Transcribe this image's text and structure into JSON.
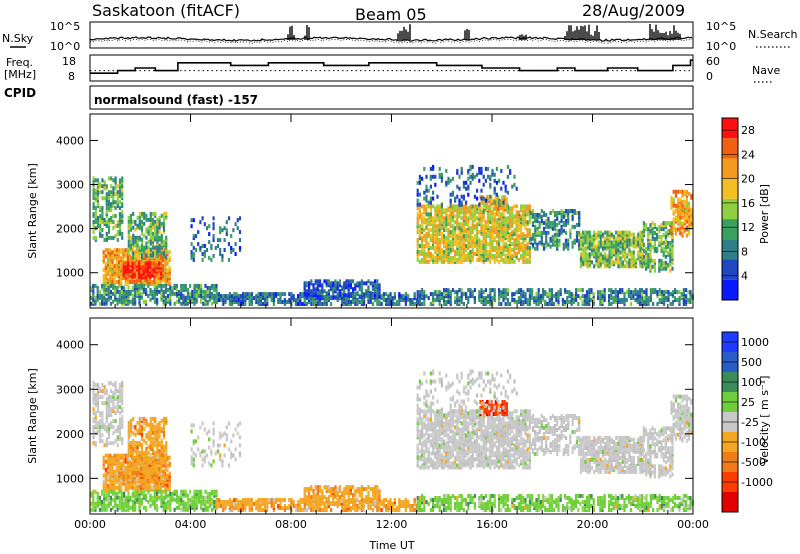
{
  "header": {
    "title_left": "Saskatoon (fitACF)",
    "title_center": "Beam 05",
    "title_right": "28/Aug/2009"
  },
  "side_labels": {
    "nsky": "N.Sky",
    "freq_line1": "Freq.",
    "freq_line2": "[MHz]",
    "cpid": "CPID",
    "nsearch": "N.Search",
    "nave": "Nave"
  },
  "cpid_text": "normalsound (fast) -157",
  "chart_data": [
    {
      "type": "line",
      "panel": "noise",
      "left_ticks": [
        "10^5",
        "10^0"
      ],
      "right_ticks": [
        "10^5",
        "10^0"
      ]
    },
    {
      "type": "line",
      "panel": "frequency",
      "left_ticks": [
        "18",
        "8"
      ],
      "right_ticks": [
        "60",
        "0"
      ],
      "freq_steps": [
        [
          0,
          11
        ],
        [
          1.1,
          12
        ],
        [
          1.8,
          13
        ],
        [
          2.6,
          12
        ],
        [
          3.5,
          15
        ],
        [
          5.6,
          14
        ],
        [
          7.1,
          15
        ],
        [
          9.3,
          14
        ],
        [
          11.1,
          15
        ],
        [
          13.8,
          14
        ],
        [
          15.6,
          13
        ],
        [
          17.1,
          12
        ],
        [
          17.9,
          12
        ],
        [
          18.6,
          13
        ],
        [
          19.3,
          12
        ],
        [
          20.6,
          13
        ],
        [
          21.8,
          12
        ],
        [
          23.2,
          14
        ],
        [
          23.9,
          16
        ],
        [
          24,
          16
        ]
      ],
      "nave_level": 12
    },
    {
      "type": "heatmap",
      "panel": "power",
      "xlabel": "",
      "ylabel": "Slant Range [km]",
      "x_ticks": [
        "00:00",
        "04:00",
        "08:00",
        "12:00",
        "16:00",
        "20:00",
        "00:00"
      ],
      "y_ticks": [
        1000,
        2000,
        3000,
        4000
      ],
      "ylim": [
        200,
        4600
      ],
      "xlim": [
        0,
        24
      ],
      "colorbar_label": "Power [dB]",
      "colorbar_ticks": [
        4,
        8,
        12,
        16,
        20,
        24,
        28
      ],
      "colorbar_range": [
        0,
        30
      ]
    },
    {
      "type": "heatmap",
      "panel": "velocity",
      "xlabel": "Time UT",
      "ylabel": "Slant Range [km]",
      "x_ticks": [
        "00:00",
        "04:00",
        "08:00",
        "12:00",
        "16:00",
        "20:00",
        "00:00"
      ],
      "y_ticks": [
        1000,
        2000,
        3000,
        4000
      ],
      "ylim": [
        200,
        4600
      ],
      "xlim": [
        0,
        24
      ],
      "colorbar_label": "Velocity [m s^-1]",
      "colorbar_label_text": "Velocity",
      "colorbar_unit_text": "[ m s⁻¹]",
      "colorbar_ticks": [
        "1000",
        "500",
        "100",
        "25",
        "-25",
        "-100",
        "-500",
        "-1000"
      ],
      "colorbar_colors": [
        "#1e3cff",
        "#2a5cc8",
        "#3a8c5a",
        "#6fcf3a",
        "#c8c8c8",
        "#f5a623",
        "#f07d1a",
        "#ff3c00",
        "#e00000"
      ]
    }
  ],
  "echo_regions": [
    {
      "t0": 0.1,
      "t1": 1.3,
      "r0": 1700,
      "r1": 3100,
      "p": 12,
      "v": "gray",
      "d": 0.45
    },
    {
      "t0": 0.5,
      "t1": 3.2,
      "r0": 700,
      "r1": 1500,
      "p": 22,
      "v": "orange",
      "d": 0.75
    },
    {
      "t0": 1.3,
      "t1": 2.8,
      "r0": 850,
      "r1": 1200,
      "p": 28,
      "v": "orange",
      "d": 0.9
    },
    {
      "t0": 1.5,
      "t1": 3.0,
      "r0": 1300,
      "r1": 2300,
      "p": 12,
      "v": "orange",
      "d": 0.5
    },
    {
      "t0": 0.0,
      "t1": 5.0,
      "r0": 250,
      "r1": 700,
      "p": 9,
      "v": "green",
      "d": 0.55
    },
    {
      "t0": 4.0,
      "t1": 6.0,
      "r0": 1200,
      "r1": 2200,
      "p": 6,
      "v": "gray",
      "d": 0.12
    },
    {
      "t0": 5.0,
      "t1": 13.0,
      "r0": 200,
      "r1": 500,
      "p": 7,
      "v": "orange",
      "d": 0.6
    },
    {
      "t0": 8.5,
      "t1": 11.5,
      "r0": 400,
      "r1": 800,
      "p": 5,
      "v": "orange",
      "d": 0.55
    },
    {
      "t0": 13.0,
      "t1": 17.5,
      "r0": 1200,
      "r1": 2500,
      "p": 18,
      "v": "gray",
      "d": 0.65
    },
    {
      "t0": 15.5,
      "t1": 16.6,
      "r0": 2400,
      "r1": 2700,
      "p": 20,
      "v": "red",
      "d": 0.6
    },
    {
      "t0": 17.5,
      "t1": 19.5,
      "r0": 1500,
      "r1": 2400,
      "p": 9,
      "v": "gray",
      "d": 0.35
    },
    {
      "t0": 19.5,
      "t1": 22.0,
      "r0": 1100,
      "r1": 1900,
      "p": 14,
      "v": "gray",
      "d": 0.7
    },
    {
      "t0": 22.0,
      "t1": 23.2,
      "r0": 1000,
      "r1": 2100,
      "p": 12,
      "v": "gray",
      "d": 0.45
    },
    {
      "t0": 23.1,
      "t1": 23.9,
      "r0": 1800,
      "r1": 2800,
      "p": 22,
      "v": "gray",
      "d": 0.55
    },
    {
      "t0": 13.0,
      "t1": 24.0,
      "r0": 200,
      "r1": 600,
      "p": 8,
      "v": "green",
      "d": 0.45
    },
    {
      "t0": 13.0,
      "t1": 17.0,
      "r0": 2500,
      "r1": 3400,
      "p": 6,
      "v": "gray",
      "d": 0.15
    }
  ]
}
